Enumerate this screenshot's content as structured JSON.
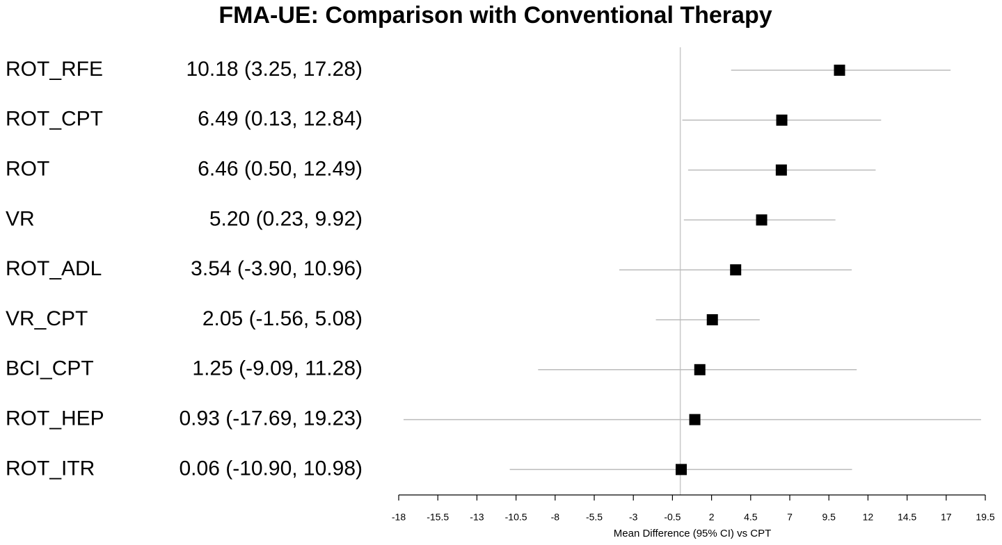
{
  "chart_data": {
    "type": "forest",
    "title": "FMA-UE: Comparison with Conventional Therapy",
    "xlabel": "Mean Difference (95% CI) vs CPT",
    "categories": [
      "ROT_RFE",
      "ROT_CPT",
      "ROT",
      "VR",
      "ROT_ADL",
      "VR_CPT",
      "BCI_CPT",
      "ROT_HEP",
      "ROT_ITR"
    ],
    "values": [
      10.18,
      6.49,
      6.46,
      5.2,
      3.54,
      2.05,
      1.25,
      0.93,
      0.06
    ],
    "lower": [
      3.25,
      0.13,
      0.5,
      0.23,
      -3.9,
      -1.56,
      -9.09,
      -17.69,
      -10.9
    ],
    "upper": [
      17.28,
      12.84,
      12.49,
      9.92,
      10.96,
      5.08,
      11.28,
      19.23,
      10.98
    ],
    "value_labels": [
      "10.18 (3.25, 17.28)",
      "6.49 (0.13, 12.84)",
      "6.46 (0.50, 12.49)",
      "5.20 (0.23, 9.92)",
      "3.54 (-3.90, 10.96)",
      "2.05 (-1.56, 5.08)",
      "1.25 (-9.09, 11.28)",
      "0.93 (-17.69, 19.23)",
      "0.06 (-10.90, 10.98)"
    ],
    "color": "#000000",
    "ci_color": "#bbbbbb",
    "reference_x": 0,
    "xlim": [
      -18,
      19.5
    ],
    "xticks": [
      -18,
      -15.5,
      -13,
      -10.5,
      -8,
      -5.5,
      -3,
      -0.5,
      2,
      4.5,
      7,
      9.5,
      12,
      14.5,
      17,
      19.5
    ]
  }
}
